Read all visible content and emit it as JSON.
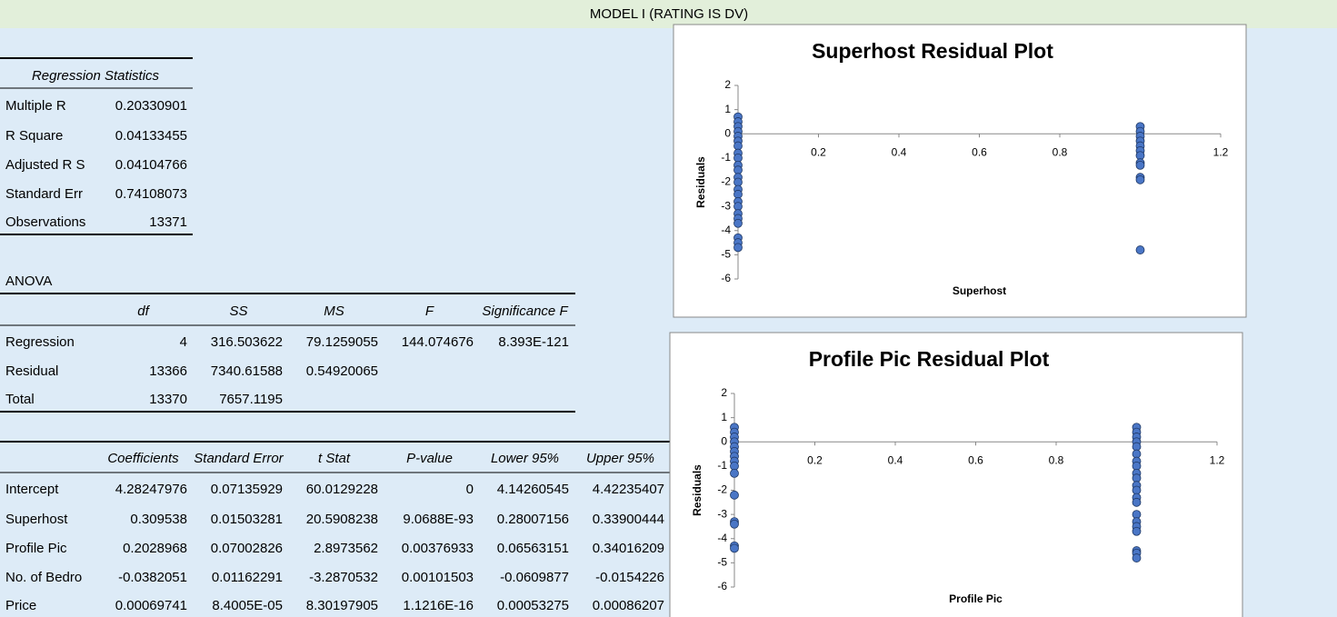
{
  "header": {
    "title": "MODEL I (RATING IS DV)"
  },
  "regression_statistics": {
    "header": "Regression Statistics",
    "rows": [
      [
        "Multiple R",
        "0.20330901"
      ],
      [
        "R Square",
        "0.04133455"
      ],
      [
        "Adjusted R S",
        "0.04104766"
      ],
      [
        "Standard Err",
        "0.74108073"
      ],
      [
        "Observations",
        "13371"
      ]
    ]
  },
  "anova": {
    "title": "ANOVA",
    "columns": [
      "",
      "df",
      "SS",
      "MS",
      "F",
      "Significance F"
    ],
    "rows": [
      [
        "Regression",
        "4",
        "316.503622",
        "79.1259055",
        "144.074676",
        "8.393E-121"
      ],
      [
        "Residual",
        "13366",
        "7340.61588",
        "0.54920065",
        "",
        ""
      ],
      [
        "Total",
        "13370",
        "7657.1195",
        "",
        "",
        ""
      ]
    ]
  },
  "coefficients": {
    "columns": [
      "",
      "Coefficients",
      "Standard Error",
      "t Stat",
      "P-value",
      "Lower 95%",
      "Upper 95%"
    ],
    "rows": [
      [
        "Intercept",
        "4.28247976",
        "0.07135929",
        "60.0129228",
        "0",
        "4.14260545",
        "4.42235407"
      ],
      [
        "Superhost",
        "0.309538",
        "0.01503281",
        "20.5908238",
        "9.0688E-93",
        "0.28007156",
        "0.33900444"
      ],
      [
        "Profile Pic",
        "0.2028968",
        "0.07002826",
        "2.8973562",
        "0.00376933",
        "0.06563151",
        "0.34016209"
      ],
      [
        "No. of Bedro",
        "-0.0382051",
        "0.01162291",
        "-3.2870532",
        "0.00101503",
        "-0.0609877",
        "-0.0154226"
      ],
      [
        "Price",
        "0.00069741",
        "8.4005E-05",
        "8.30197905",
        "1.1216E-16",
        "0.00053275",
        "0.00086207"
      ]
    ]
  },
  "chart_data": [
    {
      "type": "scatter",
      "title": "Superhost  Residual Plot",
      "x_label": "Superhost",
      "y_label": "Residuals",
      "color": "#4a76c6",
      "x": [
        0,
        0,
        0,
        0,
        0,
        0,
        0,
        0,
        0,
        0,
        0,
        0,
        0,
        0,
        0,
        0,
        0,
        0,
        0,
        0,
        0,
        0,
        0,
        1,
        1,
        1,
        1,
        1,
        1,
        1,
        1,
        1,
        1,
        1,
        1
      ],
      "y": [
        0.7,
        0.5,
        0.3,
        0.1,
        -0.1,
        -0.3,
        -0.5,
        -0.8,
        -1.0,
        -1.3,
        -1.5,
        -1.8,
        -2.0,
        -2.3,
        -2.5,
        -2.8,
        -3.0,
        -3.3,
        -3.5,
        -3.7,
        -4.3,
        -4.5,
        -4.7,
        0.3,
        0.1,
        -0.1,
        -0.3,
        -0.5,
        -0.7,
        -0.9,
        -1.2,
        -1.3,
        -1.8,
        -1.9,
        -4.8
      ],
      "xlim": [
        0,
        1.2
      ],
      "xticks": [
        0,
        0.2,
        0.4,
        0.6,
        0.8,
        1,
        1.2
      ],
      "ylim": [
        -6,
        2
      ],
      "yticks": [
        -6,
        -5,
        -4,
        -3,
        -2,
        -1,
        0,
        1,
        2
      ]
    },
    {
      "type": "scatter",
      "title": "Profile Pic  Residual Plot",
      "x_label": "Profile Pic",
      "y_label": "Residuals",
      "color": "#4a76c6",
      "x": [
        0,
        0,
        0,
        0,
        0,
        0,
        0,
        0,
        0,
        0,
        0,
        0,
        0,
        0,
        0,
        1,
        1,
        1,
        1,
        1,
        1,
        1,
        1,
        1,
        1,
        1,
        1,
        1,
        1,
        1,
        1,
        1,
        1,
        1,
        1,
        1
      ],
      "y": [
        0.6,
        0.4,
        0.2,
        0,
        -0.2,
        -0.4,
        -0.6,
        -0.8,
        -1.0,
        -1.3,
        -2.2,
        -3.3,
        -3.4,
        -4.3,
        -4.4,
        0.6,
        0.4,
        0.2,
        0,
        -0.2,
        -0.5,
        -0.8,
        -1.0,
        -1.3,
        -1.5,
        -1.8,
        -2.0,
        -2.3,
        -2.5,
        -3.0,
        -3.3,
        -3.5,
        -3.7,
        -4.5,
        -4.6,
        -4.8
      ],
      "xlim": [
        0,
        1.2
      ],
      "xticks": [
        0,
        0.2,
        0.4,
        0.6,
        0.8,
        1,
        1.2
      ],
      "ylim": [
        -6,
        2
      ],
      "yticks": [
        -6,
        -5,
        -4,
        -3,
        -2,
        -1,
        0,
        1,
        2
      ]
    }
  ]
}
